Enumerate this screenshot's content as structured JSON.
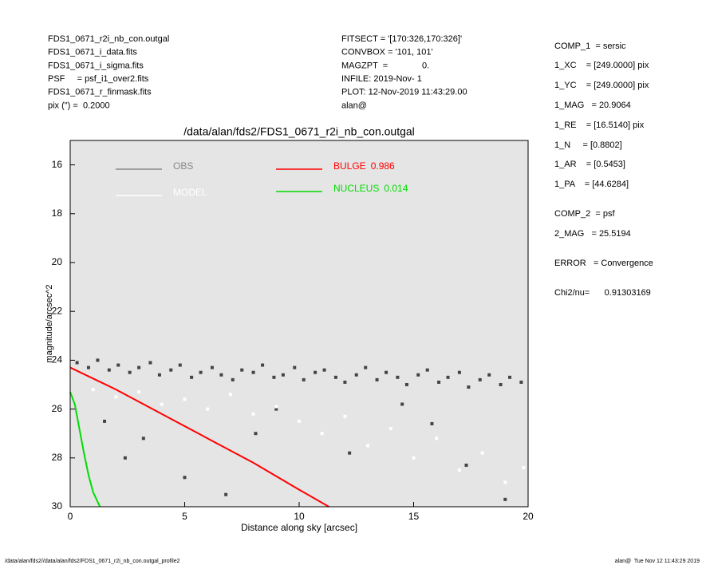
{
  "header": {
    "left": [
      "FDS1_0671_r2i_nb_con.outgal",
      "FDS1_0671_i_data.fits",
      "FDS1_0671_i_sigma.fits",
      "PSF     = psf_i1_over2.fits",
      "FDS1_0671_r_finmask.fits",
      "pix (\") =  0.2000"
    ],
    "middle": [
      "FITSECT = '[170:326,170:326]'",
      "CONVBOX = '101, 101'",
      "MAGZPT  =              0.",
      "INFILE: 2019-Nov- 1",
      "PLOT: 12-Nov-2019 11:43:29.00",
      "alan@"
    ],
    "right": [
      "COMP_1  = sersic",
      "1_XC    = [249.0000] pix",
      "1_YC    = [249.0000] pix",
      "1_MAG   = 20.9064",
      "1_RE    = [16.5140] pix",
      "1_N     = [0.8802]",
      "1_AR    = [0.5453]",
      "1_PA    = [44.6284]",
      "COMP_2  = psf",
      "2_MAG   = 25.5194",
      "ERROR   = Convergence",
      "Chi2/nu=      0.91303169"
    ]
  },
  "footer": {
    "left": "/data/alan/fds2//data/alan/fds2/FDS1_0671_r2i_nb_con.outgal_profile2",
    "right": "alan@  Tue Nov 12 11:43:29 2019"
  },
  "chart_data": {
    "type": "scatter",
    "title": "/data/alan/fds2/FDS1_0671_r2i_nb_con.outgal",
    "xlabel": "Distance along sky [arcsec]",
    "ylabel": "magnitude/arcsec^2",
    "xlim": [
      0,
      20
    ],
    "ylim": [
      30,
      15
    ],
    "xticks": [
      0,
      5,
      10,
      15,
      20
    ],
    "yticks": [
      16,
      18,
      20,
      22,
      24,
      26,
      28,
      30
    ],
    "background": "#e5e5e5",
    "series": [
      {
        "name": "OBS",
        "color": "#444444",
        "mode": "scatter",
        "x": [
          0.3,
          0.8,
          1.2,
          1.7,
          2.1,
          2.6,
          3.0,
          3.5,
          3.9,
          4.4,
          4.8,
          5.3,
          5.7,
          6.2,
          6.6,
          7.1,
          7.5,
          8.0,
          8.4,
          8.9,
          9.3,
          9.8,
          10.2,
          10.7,
          11.1,
          11.6,
          12.0,
          12.5,
          12.9,
          13.4,
          13.8,
          14.3,
          14.7,
          15.2,
          15.6,
          16.1,
          16.5,
          17.0,
          17.4,
          17.9,
          18.3,
          18.8,
          19.2,
          19.7,
          1.5,
          3.2,
          5.0,
          6.8,
          9.0,
          12.2,
          14.5,
          17.3,
          19.0,
          2.4,
          8.1,
          15.8
        ],
        "values": [
          24.1,
          24.3,
          24.0,
          24.4,
          24.2,
          24.5,
          24.3,
          24.1,
          24.6,
          24.4,
          24.2,
          24.7,
          24.5,
          24.3,
          24.6,
          24.8,
          24.4,
          24.5,
          24.2,
          24.7,
          24.6,
          24.3,
          24.8,
          24.5,
          24.4,
          24.7,
          24.9,
          24.6,
          24.3,
          24.8,
          24.5,
          24.7,
          25.0,
          24.6,
          24.4,
          24.9,
          24.7,
          24.5,
          25.1,
          24.8,
          24.6,
          25.0,
          24.7,
          24.9,
          26.5,
          27.2,
          28.8,
          29.5,
          26.0,
          27.8,
          25.8,
          28.3,
          29.7,
          28.0,
          27.0,
          26.6
        ]
      },
      {
        "name": "MODEL",
        "color": "#ffffff",
        "mode": "scatter",
        "x": [
          1.0,
          2.0,
          3.0,
          4.0,
          5.0,
          6.0,
          7.0,
          8.0,
          9.0,
          10.0,
          11.0,
          12.0,
          13.0,
          14.0,
          15.0,
          16.0,
          17.0,
          18.0,
          19.0,
          19.8
        ],
        "values": [
          25.2,
          25.5,
          25.3,
          25.8,
          25.6,
          26.0,
          25.4,
          26.2,
          25.9,
          26.5,
          27.0,
          26.3,
          27.5,
          26.8,
          28.0,
          27.2,
          28.5,
          27.8,
          29.0,
          28.4
        ]
      },
      {
        "name": "BULGE",
        "fraction": 0.986,
        "color": "#ff0000",
        "mode": "line",
        "x": [
          0,
          2,
          4,
          6,
          8,
          10,
          11.3
        ],
        "values": [
          24.3,
          25.2,
          26.2,
          27.2,
          28.2,
          29.3,
          30
        ]
      },
      {
        "name": "NUCLEUS",
        "fraction": 0.014,
        "color": "#00dd00",
        "mode": "line",
        "x": [
          0,
          0.2,
          0.4,
          0.6,
          0.8,
          1.0,
          1.3
        ],
        "values": [
          25.3,
          25.8,
          26.8,
          27.8,
          28.7,
          29.4,
          30
        ]
      }
    ]
  }
}
